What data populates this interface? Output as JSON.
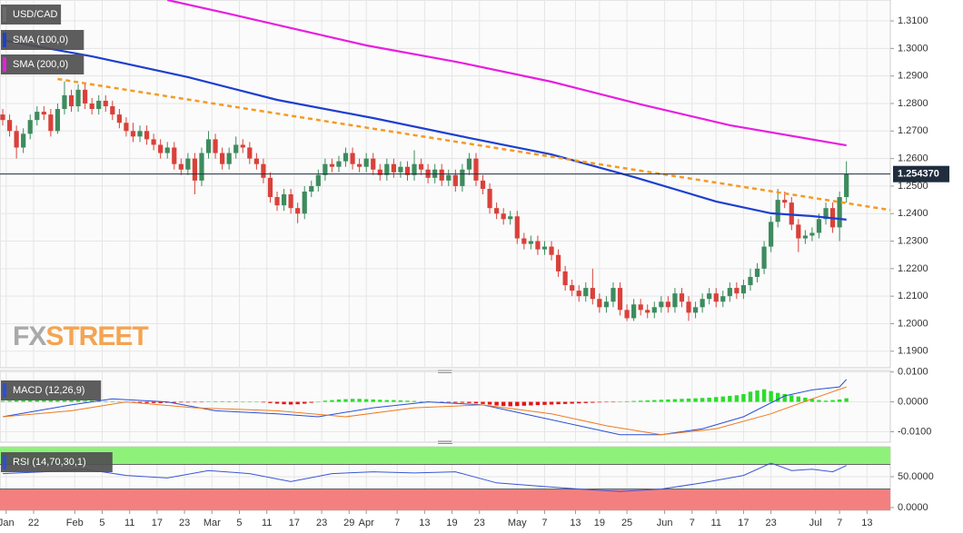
{
  "chart_data": [
    {
      "type": "candlestick",
      "title": "USD/CAD",
      "xlim": [
        -0.4,
        129.4
      ],
      "ylim": [
        1.184,
        1.3176
      ],
      "yticks": [
        {
          "value": 1.19,
          "label": "1.1900"
        },
        {
          "value": 1.2,
          "label": "1.2000"
        },
        {
          "value": 1.21,
          "label": "1.2100"
        },
        {
          "value": 1.22,
          "label": "1.2200"
        },
        {
          "value": 1.23,
          "label": "1.2300"
        },
        {
          "value": 1.24,
          "label": "1.2400"
        },
        {
          "value": 1.25,
          "label": "1.2500"
        },
        {
          "value": 1.26,
          "label": "1.2600"
        },
        {
          "value": 1.27,
          "label": "1.2700"
        },
        {
          "value": 1.28,
          "label": "1.2800"
        },
        {
          "value": 1.29,
          "label": "1.2900"
        },
        {
          "value": 1.3,
          "label": "1.3000"
        },
        {
          "value": 1.31,
          "label": "1.3100"
        }
      ],
      "grid": true,
      "up_color": "#3d8b5e",
      "down_color": "#d9413a",
      "open": [
        1.276,
        1.274,
        1.27,
        1.264,
        1.269,
        1.274,
        1.277,
        1.276,
        1.27,
        1.278,
        1.283,
        1.279,
        1.285,
        1.28,
        1.278,
        1.281,
        1.279,
        1.276,
        1.273,
        1.27,
        1.268,
        1.27,
        1.267,
        1.265,
        1.262,
        1.264,
        1.258,
        1.256,
        1.26,
        1.252,
        1.262,
        1.267,
        1.262,
        1.258,
        1.262,
        1.265,
        1.264,
        1.26,
        1.258,
        1.253,
        1.246,
        1.243,
        1.247,
        1.242,
        1.24,
        1.248,
        1.25,
        1.254,
        1.258,
        1.257,
        1.259,
        1.262,
        1.258,
        1.257,
        1.26,
        1.256,
        1.254,
        1.258,
        1.255,
        1.257,
        1.254,
        1.258,
        1.256,
        1.253,
        1.256,
        1.252,
        1.254,
        1.25,
        1.256,
        1.26,
        1.252,
        1.249,
        1.242,
        1.24,
        1.238,
        1.239,
        1.231,
        1.229,
        1.23,
        1.227,
        1.228,
        1.225,
        1.219,
        1.214,
        1.212,
        1.21,
        1.213,
        1.209,
        1.206,
        1.208,
        1.213,
        1.205,
        1.202,
        1.207,
        1.205,
        1.204,
        1.206,
        1.208,
        1.206,
        1.211,
        1.208,
        1.204,
        1.206,
        1.209,
        1.211,
        1.208,
        1.21,
        1.213,
        1.211,
        1.214,
        1.217,
        1.22,
        1.228,
        1.237,
        1.245,
        1.244,
        1.236,
        1.231,
        1.232,
        1.233,
        1.238,
        1.242,
        1.235,
        1.246
      ],
      "high": [
        1.278,
        1.276,
        1.272,
        1.271,
        1.276,
        1.279,
        1.279,
        1.278,
        1.28,
        1.288,
        1.285,
        1.287,
        1.287,
        1.282,
        1.283,
        1.283,
        1.281,
        1.278,
        1.275,
        1.273,
        1.272,
        1.272,
        1.269,
        1.267,
        1.266,
        1.266,
        1.26,
        1.262,
        1.262,
        1.264,
        1.27,
        1.269,
        1.264,
        1.264,
        1.268,
        1.267,
        1.266,
        1.262,
        1.26,
        1.255,
        1.248,
        1.249,
        1.249,
        1.244,
        1.25,
        1.252,
        1.256,
        1.26,
        1.26,
        1.261,
        1.264,
        1.264,
        1.26,
        1.262,
        1.262,
        1.258,
        1.26,
        1.26,
        1.259,
        1.259,
        1.263,
        1.26,
        1.258,
        1.258,
        1.258,
        1.256,
        1.256,
        1.258,
        1.262,
        1.262,
        1.254,
        1.251,
        1.244,
        1.242,
        1.241,
        1.241,
        1.233,
        1.232,
        1.232,
        1.23,
        1.23,
        1.227,
        1.221,
        1.216,
        1.214,
        1.215,
        1.22,
        1.211,
        1.21,
        1.215,
        1.215,
        1.207,
        1.209,
        1.209,
        1.207,
        1.208,
        1.21,
        1.21,
        1.213,
        1.213,
        1.21,
        1.208,
        1.211,
        1.213,
        1.213,
        1.212,
        1.215,
        1.215,
        1.216,
        1.22,
        1.222,
        1.23,
        1.239,
        1.249,
        1.248,
        1.246,
        1.238,
        1.234,
        1.235,
        1.24,
        1.244,
        1.244,
        1.248,
        1.259
      ],
      "low": [
        1.272,
        1.268,
        1.26,
        1.262,
        1.267,
        1.272,
        1.274,
        1.268,
        1.269,
        1.276,
        1.277,
        1.277,
        1.278,
        1.276,
        1.276,
        1.277,
        1.274,
        1.271,
        1.268,
        1.266,
        1.266,
        1.265,
        1.263,
        1.26,
        1.26,
        1.256,
        1.254,
        1.254,
        1.247,
        1.25,
        1.26,
        1.26,
        1.256,
        1.256,
        1.26,
        1.262,
        1.258,
        1.256,
        1.251,
        1.244,
        1.241,
        1.241,
        1.24,
        1.2365,
        1.238,
        1.246,
        1.248,
        1.252,
        1.255,
        1.255,
        1.257,
        1.256,
        1.255,
        1.255,
        1.254,
        1.252,
        1.252,
        1.253,
        1.253,
        1.252,
        1.252,
        1.254,
        1.251,
        1.251,
        1.25,
        1.25,
        1.248,
        1.248,
        1.254,
        1.25,
        1.247,
        1.24,
        1.238,
        1.236,
        1.236,
        1.229,
        1.227,
        1.227,
        1.225,
        1.225,
        1.223,
        1.217,
        1.212,
        1.21,
        1.208,
        1.208,
        1.207,
        1.204,
        1.204,
        1.206,
        1.203,
        1.201,
        1.201,
        1.203,
        1.202,
        1.202,
        1.204,
        1.204,
        1.204,
        1.206,
        1.201,
        1.202,
        1.204,
        1.207,
        1.206,
        1.206,
        1.208,
        1.209,
        1.209,
        1.212,
        1.215,
        1.218,
        1.226,
        1.235,
        1.242,
        1.234,
        1.226,
        1.229,
        1.23,
        1.231,
        1.236,
        1.233,
        1.23,
        1.244
      ],
      "close": [
        1.274,
        1.27,
        1.264,
        1.269,
        1.274,
        1.277,
        1.276,
        1.27,
        1.278,
        1.283,
        1.279,
        1.285,
        1.28,
        1.278,
        1.281,
        1.279,
        1.276,
        1.273,
        1.27,
        1.268,
        1.27,
        1.267,
        1.265,
        1.262,
        1.264,
        1.258,
        1.256,
        1.26,
        1.252,
        1.262,
        1.267,
        1.262,
        1.258,
        1.262,
        1.265,
        1.264,
        1.26,
        1.258,
        1.253,
        1.246,
        1.243,
        1.247,
        1.242,
        1.24,
        1.248,
        1.25,
        1.254,
        1.258,
        1.257,
        1.259,
        1.262,
        1.258,
        1.257,
        1.26,
        1.256,
        1.254,
        1.258,
        1.255,
        1.257,
        1.254,
        1.258,
        1.256,
        1.253,
        1.256,
        1.252,
        1.254,
        1.25,
        1.256,
        1.26,
        1.252,
        1.249,
        1.242,
        1.24,
        1.238,
        1.239,
        1.231,
        1.229,
        1.23,
        1.227,
        1.228,
        1.225,
        1.219,
        1.214,
        1.212,
        1.21,
        1.213,
        1.209,
        1.206,
        1.208,
        1.213,
        1.205,
        1.202,
        1.207,
        1.205,
        1.204,
        1.206,
        1.208,
        1.206,
        1.211,
        1.208,
        1.204,
        1.206,
        1.209,
        1.211,
        1.208,
        1.21,
        1.213,
        1.211,
        1.214,
        1.217,
        1.22,
        1.228,
        1.237,
        1.245,
        1.244,
        1.236,
        1.231,
        1.232,
        1.233,
        1.238,
        1.242,
        1.235,
        1.246,
        1.2544
      ],
      "last_price": {
        "value": 1.25437,
        "label": "1.254370"
      },
      "overlays": [
        {
          "name": "SMA (100,0)",
          "color": "#1d3fd0",
          "x": [
            0,
            13,
            27,
            40,
            54,
            68,
            80,
            92,
            104,
            112,
            118,
            123
          ],
          "values": [
            1.303,
            1.2971,
            1.2896,
            1.2813,
            1.2747,
            1.2675,
            1.2615,
            1.2533,
            1.2444,
            1.2401,
            1.2391,
            1.2378
          ]
        },
        {
          "name": "SMA (200,0)",
          "color": "#e81ee0",
          "x": [
            24,
            33,
            53,
            66,
            80,
            93,
            106,
            123
          ],
          "values": [
            1.3176,
            1.3126,
            1.3011,
            1.2952,
            1.2879,
            1.2797,
            1.2721,
            1.2648
          ]
        },
        {
          "color": "#f59a23",
          "style": "dashed",
          "x": [
            8,
            129.4
          ],
          "values": [
            1.2889,
            1.2413
          ]
        }
      ],
      "watermark": [
        "FX",
        "STREET"
      ],
      "watermark_colors": [
        "#a9a9a9",
        "#f4a451"
      ]
    },
    {
      "type": "macd",
      "title": "MACD (12,26,9)",
      "xlim": [
        -0.4,
        129.4
      ],
      "ylim": [
        -0.0135,
        0.0105
      ],
      "yticks": [
        {
          "value": 0.01,
          "label": "0.0100"
        },
        {
          "value": 0,
          "label": "0.0000"
        },
        {
          "value": -0.01,
          "label": "-0.0100"
        }
      ],
      "histogram": {
        "up_color": "#2bdc2b",
        "down_color": "#e81212",
        "values": [
          0.0003,
          0.0004,
          0.0005,
          0.0005,
          0.0006,
          0.0006,
          0.0007,
          0.0007,
          0.0006,
          0.0006,
          0.0005,
          0.0005,
          0.0004,
          0.0004,
          0.0003,
          0.0002,
          0.0001,
          0,
          -0.0001,
          -0.0002,
          -0.0003,
          -0.0004,
          -0.0004,
          -0.0004,
          -0.0003,
          -0.0003,
          -0.0002,
          -0.0002,
          -0.0001,
          -0.0001,
          0.0001,
          0.0002,
          0.0002,
          0.0002,
          0.0002,
          0.0001,
          0.0001,
          0,
          -0.0002,
          -0.0004,
          -0.0006,
          -0.0008,
          -0.0009,
          -0.0008,
          -0.0006,
          -0.0003,
          0,
          0.0004,
          0.0006,
          0.0008,
          0.0009,
          0.001,
          0.001,
          0.0009,
          0.0008,
          0.0007,
          0.0006,
          0.0006,
          0.0005,
          0.0004,
          0.0003,
          0.0002,
          0.0001,
          0,
          -0.0001,
          -0.0002,
          -0.0003,
          -0.0003,
          -0.0004,
          -0.0005,
          -0.0007,
          -0.0009,
          -0.0012,
          -0.0014,
          -0.0015,
          -0.0014,
          -0.0013,
          -0.0012,
          -0.0011,
          -0.001,
          -0.0009,
          -0.0008,
          -0.0007,
          -0.0006,
          -0.0005,
          -0.0004,
          -0.0003,
          -0.0002,
          -0.0001,
          -0.0001,
          0.0001,
          0.0002,
          0.0003,
          0.0004,
          0.0005,
          0.0006,
          0.0007,
          0.0008,
          0.0009,
          0.001,
          0.0011,
          0.0012,
          0.0013,
          0.0014,
          0.0016,
          0.0018,
          0.002,
          0.0022,
          0.0026,
          0.0034,
          0.0038,
          0.0042,
          0.0036,
          0.003,
          0.0026,
          0.0022,
          0.0018,
          0.0014,
          0.001,
          0.0006,
          0.0004,
          0.0006,
          0.0008,
          0.0012
        ]
      },
      "series": [
        {
          "color": "#2a4fd8",
          "x": [
            0,
            10,
            16,
            24,
            31,
            40,
            46,
            54,
            62,
            70,
            76,
            84,
            90,
            96,
            102,
            108,
            114,
            118,
            122,
            123
          ],
          "values": [
            -0.005,
            -0.001,
            0.001,
            0,
            -0.003,
            -0.004,
            -0.005,
            -0.002,
            0,
            -0.001,
            -0.004,
            -0.008,
            -0.011,
            -0.011,
            -0.009,
            -0.005,
            0.002,
            0.004,
            0.005,
            0.0075
          ]
        },
        {
          "color": "#f07a20",
          "x": [
            0,
            10,
            18,
            28,
            40,
            50,
            60,
            70,
            80,
            88,
            96,
            104,
            112,
            118,
            123
          ],
          "values": [
            -0.005,
            -0.003,
            0,
            -0.002,
            -0.003,
            -0.005,
            -0.002,
            -0.001,
            -0.004,
            -0.008,
            -0.011,
            -0.009,
            -0.004,
            0.001,
            0.005
          ]
        }
      ]
    },
    {
      "type": "line",
      "title": "RSI (14,70,30,1)",
      "xlim": [
        -0.4,
        129.4
      ],
      "ylim": [
        -4.4,
        98.5
      ],
      "yticks": [
        {
          "value": 50,
          "label": "50.0000"
        },
        {
          "value": 0,
          "label": "0.0000"
        }
      ],
      "levels": [
        70,
        30
      ],
      "band_colors": [
        "#8ef27a",
        "#f47f7f"
      ],
      "series": [
        {
          "color": "#3a56d8",
          "x": [
            0,
            6,
            12,
            18,
            24,
            30,
            36,
            42,
            48,
            54,
            60,
            66,
            72,
            78,
            84,
            90,
            96,
            102,
            108,
            112,
            115,
            118,
            121,
            123
          ],
          "values": [
            55,
            58,
            62,
            52,
            48,
            60,
            55,
            42,
            55,
            58,
            56,
            58,
            40,
            35,
            30,
            26,
            30,
            40,
            52,
            72,
            60,
            62,
            58,
            68
          ]
        }
      ],
      "xticks": [
        {
          "value": 0.5,
          "label": "Jan"
        },
        {
          "value": 4.5,
          "label": "22"
        },
        {
          "value": 10.5,
          "label": "Feb"
        },
        {
          "value": 14.5,
          "label": "5"
        },
        {
          "value": 18.5,
          "label": "11"
        },
        {
          "value": 22.5,
          "label": "17"
        },
        {
          "value": 26.5,
          "label": "23"
        },
        {
          "value": 30.5,
          "label": "Mar"
        },
        {
          "value": 34.5,
          "label": "5"
        },
        {
          "value": 38.5,
          "label": "11"
        },
        {
          "value": 42.5,
          "label": "17"
        },
        {
          "value": 46.5,
          "label": "23"
        },
        {
          "value": 50.5,
          "label": "29"
        },
        {
          "value": 53,
          "label": "Apr"
        },
        {
          "value": 57.5,
          "label": "7"
        },
        {
          "value": 61.5,
          "label": "13"
        },
        {
          "value": 65.5,
          "label": "19"
        },
        {
          "value": 69.5,
          "label": "23"
        },
        {
          "value": 75,
          "label": "May"
        },
        {
          "value": 79,
          "label": "7"
        },
        {
          "value": 83.5,
          "label": "13"
        },
        {
          "value": 87,
          "label": "19"
        },
        {
          "value": 91,
          "label": "25"
        },
        {
          "value": 96.5,
          "label": "Jun"
        },
        {
          "value": 100.5,
          "label": "7"
        },
        {
          "value": 104,
          "label": "11"
        },
        {
          "value": 108,
          "label": "17"
        },
        {
          "value": 112,
          "label": "23"
        },
        {
          "value": 118.5,
          "label": "Jul"
        },
        {
          "value": 122,
          "label": "7"
        },
        {
          "value": 126,
          "label": "13"
        }
      ]
    }
  ]
}
